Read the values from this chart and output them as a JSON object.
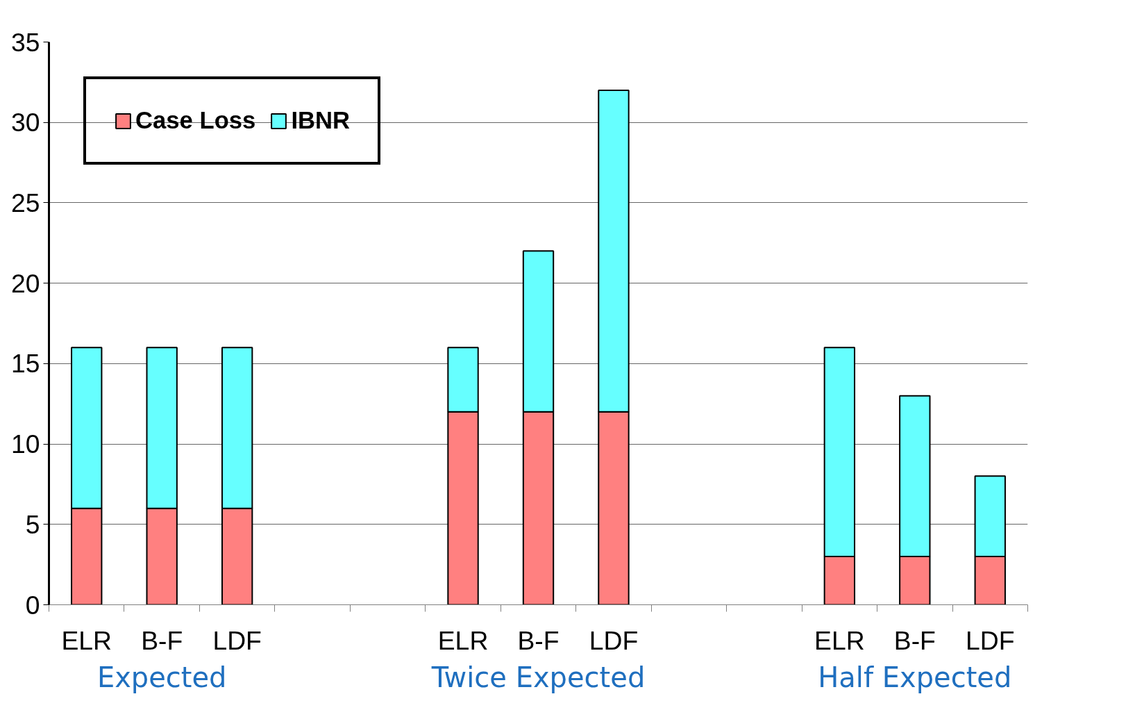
{
  "chart_data": {
    "type": "bar",
    "stacked": true,
    "categories": [
      "ELR",
      "B-F",
      "LDF",
      null,
      null,
      "ELR",
      "B-F",
      "LDF",
      null,
      null,
      "ELR",
      "B-F",
      "LDF"
    ],
    "series": [
      {
        "name": "Case Loss",
        "color": "#ff8080",
        "values": [
          6,
          6,
          6,
          null,
          null,
          12,
          12,
          12,
          null,
          null,
          3,
          3,
          3
        ]
      },
      {
        "name": "IBNR",
        "color": "#66ffff",
        "values": [
          10,
          10,
          10,
          null,
          null,
          4,
          10,
          20,
          null,
          null,
          13,
          10,
          5
        ]
      }
    ],
    "ylim": [
      0,
      35
    ],
    "yticks": [
      0,
      5,
      10,
      15,
      20,
      25,
      30,
      35
    ],
    "grid": "y",
    "legend": "top left",
    "annotations": [
      "Expected",
      "Twice Expected",
      "Half Expected"
    ]
  }
}
